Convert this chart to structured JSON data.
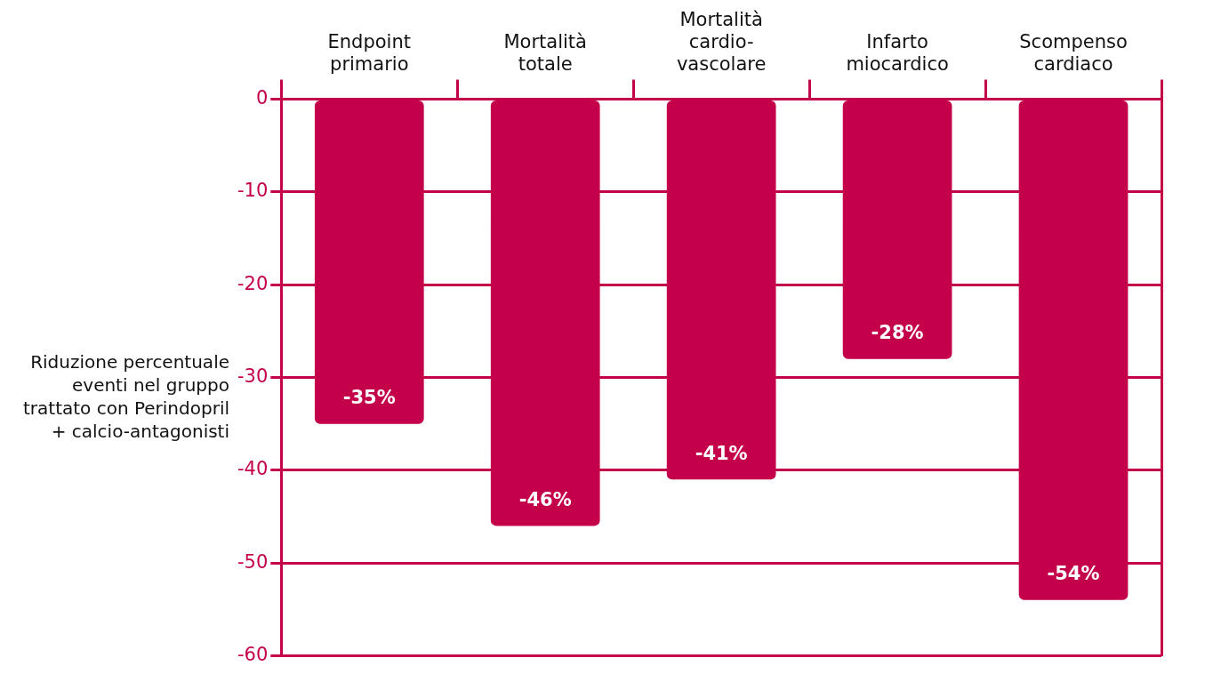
{
  "chart_data": {
    "type": "bar",
    "ylabel": "Riduzione percentuale eventi nel gruppo trattato con Perindopril + calcio-antagonisti",
    "categories": [
      "Endpoint primario",
      "Mortalità totale",
      "Mortalità cardio-vascolare",
      "Infarto miocardico",
      "Scompenso cardiaco"
    ],
    "values": [
      -35,
      -46,
      -41,
      -28,
      -54
    ],
    "value_labels": [
      "-35%",
      "-46%",
      "-41%",
      "-28%",
      "-54%"
    ],
    "color": "#c4004a",
    "ylim": [
      -60,
      0
    ],
    "yticks": [
      0,
      -10,
      -20,
      -30,
      -40,
      -50,
      -60
    ],
    "grid": "y"
  }
}
